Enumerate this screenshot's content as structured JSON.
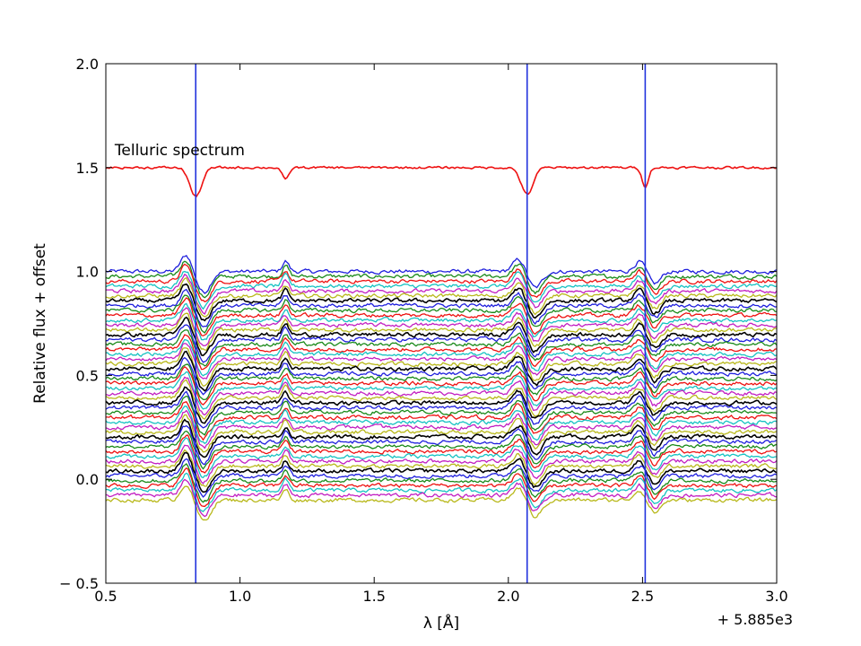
{
  "chart_data": {
    "type": "line",
    "xlabel": "λ [Å]",
    "ylabel": "Relative flux + offset",
    "x_offset_label": "+ 5.885e3",
    "xlim": [
      0.5,
      3.0
    ],
    "ylim": [
      -0.5,
      2.0
    ],
    "x_ticks": [
      0.5,
      1.0,
      1.5,
      2.0,
      2.5,
      3.0
    ],
    "x_tick_labels": [
      "0.5",
      "1.0",
      "1.5",
      "2.0",
      "2.5",
      "3.0"
    ],
    "y_ticks": [
      -0.5,
      0.0,
      0.5,
      1.0,
      1.5,
      2.0
    ],
    "y_tick_labels": [
      "− 0.5",
      "0.0",
      "0.5",
      "1.0",
      "1.5",
      "2.0"
    ],
    "grid": false,
    "legend": "none",
    "annotations": [
      {
        "text": "Telluric spectrum",
        "x": 0.6,
        "y": 1.56
      }
    ],
    "vertical_lines": {
      "x": [
        0.835,
        2.07,
        2.51
      ],
      "color": "#2233dd"
    },
    "telluric_spectrum": {
      "color": "#ee1111",
      "continuum": 1.5,
      "dips": [
        {
          "x": 0.835,
          "depth": 0.14
        },
        {
          "x": 1.17,
          "depth": 0.06
        },
        {
          "x": 2.07,
          "depth": 0.13
        },
        {
          "x": 2.51,
          "depth": 0.09
        }
      ]
    },
    "stacked_spectra": {
      "count": 48,
      "top_offset": 1.0,
      "bottom_offset": -0.1,
      "color_cycle": [
        "#1f1fdd",
        "#1a8a1a",
        "#ee1111",
        "#17c2c2",
        "#c21fc2",
        "#b8b81a",
        "#000000"
      ],
      "features": [
        {
          "x": 0.81,
          "shape": "emission-then-absorption"
        },
        {
          "x": 1.17,
          "shape": "emission"
        },
        {
          "x": 2.07,
          "shape": "emission-then-absorption"
        },
        {
          "x": 2.51,
          "shape": "emission-then-absorption"
        }
      ]
    }
  }
}
